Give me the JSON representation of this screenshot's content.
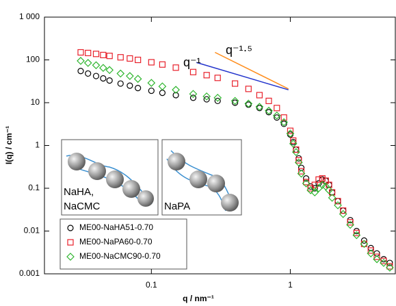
{
  "chart_data": {
    "type": "scatter",
    "xlabel": "q / nm⁻¹",
    "ylabel": "I(q) / cm⁻¹",
    "xscale": "log",
    "yscale": "log",
    "xlim": [
      0.017,
      5.7
    ],
    "ylim": [
      0.001,
      1000
    ],
    "xticks": [
      0.1,
      1
    ],
    "yticks": [
      0.001,
      0.01,
      0.1,
      1,
      10,
      100,
      {
        "value": 1000,
        "label": "1 000"
      }
    ],
    "legend": "lower left",
    "x": [
      0.031,
      0.035,
      0.04,
      0.045,
      0.05,
      0.06,
      0.07,
      0.08,
      0.1,
      0.12,
      0.15,
      0.2,
      0.25,
      0.3,
      0.4,
      0.5,
      0.6,
      0.7,
      0.8,
      0.9,
      1.0,
      1.05,
      1.1,
      1.15,
      1.2,
      1.3,
      1.4,
      1.5,
      1.6,
      1.7,
      1.8,
      1.9,
      2.0,
      2.2,
      2.4,
      2.7,
      3.0,
      3.4,
      3.8,
      4.2,
      4.7,
      5.2
    ],
    "series": [
      {
        "name": "ME00-NaHA51-0.70",
        "color": "#000000",
        "marker": "circle",
        "values": [
          55,
          48,
          42,
          37,
          33,
          28,
          25,
          22,
          19,
          17,
          15,
          13,
          12,
          11,
          10,
          9,
          7.5,
          6,
          4.5,
          3.2,
          1.8,
          1.2,
          0.8,
          0.5,
          0.3,
          0.17,
          0.11,
          0.1,
          0.13,
          0.16,
          0.15,
          0.12,
          0.08,
          0.05,
          0.03,
          0.018,
          0.01,
          0.006,
          0.004,
          0.003,
          0.0022,
          0.0018
        ]
      },
      {
        "name": "ME00-NaPA60-0.70",
        "color": "#e8202a",
        "marker": "square",
        "values": [
          150,
          145,
          138,
          130,
          124,
          115,
          108,
          100,
          88,
          78,
          66,
          52,
          44,
          38,
          28,
          21,
          15,
          11,
          7.5,
          4.5,
          2.2,
          1.3,
          0.8,
          0.45,
          0.25,
          0.14,
          0.1,
          0.12,
          0.16,
          0.17,
          0.15,
          0.12,
          0.08,
          0.05,
          0.03,
          0.016,
          0.009,
          0.005,
          0.0035,
          0.0025,
          0.002,
          0.0015
        ]
      },
      {
        "name": "ME00-NaCMC90-0.70",
        "color": "#2db52d",
        "marker": "diamond",
        "values": [
          95,
          85,
          75,
          65,
          58,
          48,
          42,
          36,
          29,
          24,
          20,
          16,
          14,
          13,
          11,
          9.5,
          8,
          6.5,
          5,
          3.5,
          1.9,
          1.1,
          0.7,
          0.4,
          0.22,
          0.13,
          0.09,
          0.08,
          0.1,
          0.12,
          0.11,
          0.09,
          0.06,
          0.04,
          0.025,
          0.014,
          0.008,
          0.005,
          0.003,
          0.0022,
          0.0018,
          0.0014
        ]
      }
    ],
    "reference_lines": [
      {
        "label": "q⁻¹",
        "color": "#2233cc",
        "x": [
          0.211,
          0.97
        ],
        "y": [
          87,
          20
        ]
      },
      {
        "label": "q⁻¹·⁵",
        "color": "#ff8c1a",
        "x": [
          0.287,
          0.97
        ],
        "y": [
          150,
          21
        ]
      }
    ],
    "insets": [
      {
        "label_lines": [
          "NaHA,",
          "NaCMC"
        ]
      },
      {
        "label_lines": [
          "NaPA"
        ]
      }
    ]
  }
}
